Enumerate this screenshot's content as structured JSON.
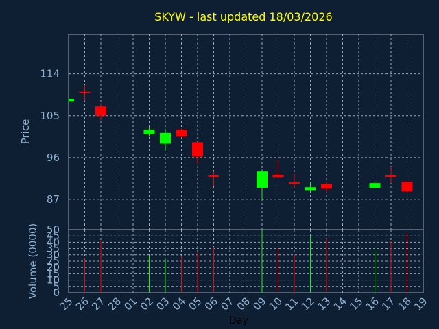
{
  "chart_data": {
    "type": "candlestick",
    "title": "SKYW - last updated 18/03/2026",
    "xlabel": "Day",
    "ylabel": "Price",
    "volume_label": "Volume (0000)",
    "categories": [
      "25",
      "26",
      "27",
      "28",
      "01",
      "02",
      "03",
      "04",
      "05",
      "06",
      "07",
      "08",
      "09",
      "10",
      "11",
      "12",
      "13",
      "14",
      "15",
      "16",
      "17",
      "18",
      "19"
    ],
    "price_ticks": [
      87,
      96,
      105,
      114
    ],
    "price_range": [
      80.5,
      122.5
    ],
    "volume_ticks": [
      0,
      5,
      10,
      15,
      20,
      25,
      30,
      35,
      40,
      45,
      50
    ],
    "volume_range": [
      0,
      50
    ],
    "candles": [
      {
        "day": "25",
        "open": 108.6,
        "high": 108.7,
        "low": 108.0,
        "close": 108.0,
        "volume": 0,
        "color": "#00ff00"
      },
      {
        "day": "26",
        "open": 110.0,
        "high": 111.6,
        "low": 108.2,
        "close": 110.0,
        "volume": 27,
        "color": "#ff0000"
      },
      {
        "day": "27",
        "open": 107.0,
        "high": 107.6,
        "low": 104.0,
        "close": 105.0,
        "volume": 41,
        "color": "#ff0000"
      },
      {
        "day": "02",
        "open": 101.0,
        "high": 102.5,
        "low": 100.5,
        "close": 102.0,
        "volume": 29,
        "color": "#00ff00"
      },
      {
        "day": "03",
        "open": 99.0,
        "high": 102.0,
        "low": 97.5,
        "close": 101.3,
        "volume": 27,
        "color": "#00ff00"
      },
      {
        "day": "04",
        "open": 102.0,
        "high": 102.2,
        "low": 100.3,
        "close": 100.5,
        "volume": 29,
        "color": "#ff0000"
      },
      {
        "day": "05",
        "open": 99.3,
        "high": 99.3,
        "low": 94.5,
        "close": 96.2,
        "volume": 32,
        "color": "#ff0000"
      },
      {
        "day": "06",
        "open": 92.0,
        "high": 93.0,
        "low": 89.8,
        "close": 92.0,
        "volume": 36,
        "color": "#ff0000"
      },
      {
        "day": "09",
        "open": 89.5,
        "high": 93.5,
        "low": 87.0,
        "close": 93.0,
        "volume": 50,
        "color": "#00ff00"
      },
      {
        "day": "10",
        "open": 92.3,
        "high": 95.5,
        "low": 91.5,
        "close": 91.8,
        "volume": 35,
        "color": "#ff0000"
      },
      {
        "day": "11",
        "open": 90.5,
        "high": 92.5,
        "low": 89.5,
        "close": 90.3,
        "volume": 30,
        "color": "#ff0000"
      },
      {
        "day": "12",
        "open": 89.0,
        "high": 90.8,
        "low": 88.8,
        "close": 89.6,
        "volume": 45,
        "color": "#00ff00"
      },
      {
        "day": "13",
        "open": 90.3,
        "high": 90.8,
        "low": 88.5,
        "close": 89.3,
        "volume": 43,
        "color": "#ff0000"
      },
      {
        "day": "16",
        "open": 89.5,
        "high": 91.0,
        "low": 89.3,
        "close": 90.5,
        "volume": 34,
        "color": "#00ff00"
      },
      {
        "day": "17",
        "open": 92.0,
        "high": 94.0,
        "low": 90.5,
        "close": 92.0,
        "volume": 41,
        "color": "#ff0000"
      },
      {
        "day": "18",
        "open": 90.8,
        "high": 90.8,
        "low": 88.6,
        "close": 88.7,
        "volume": 47,
        "color": "#ff0000"
      }
    ],
    "grid": true,
    "colors": {
      "background": "#0f1f33",
      "up": "#00ff00",
      "down": "#ff0000",
      "text": "#8fb0d0",
      "title": "#ffff00",
      "grid": "#9aa6b4"
    }
  }
}
